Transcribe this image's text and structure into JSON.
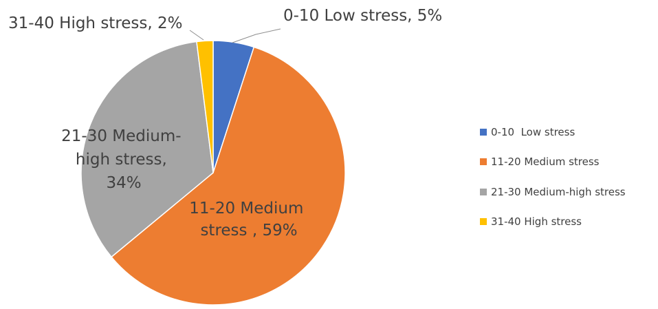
{
  "chart_data": {
    "type": "pie",
    "title": "",
    "categories": [
      "0-10  Low stress",
      "11-20 Medium stress",
      "21-30 Medium-high stress",
      "31-40 High stress"
    ],
    "values": [
      5,
      59,
      34,
      2
    ],
    "colors": [
      "#4472C4",
      "#ED7D31",
      "#A5A5A5",
      "#FFC000"
    ],
    "data_labels": [
      [
        "0-10  Low stress, 5%"
      ],
      [
        "11-20 Medium",
        "stress , 59%"
      ],
      [
        "21-30 Medium-",
        "high stress,",
        "34%"
      ],
      [
        "31-40 High stress, 2%"
      ]
    ],
    "legend_position": "right",
    "legend_entries": [
      "0-10  Low stress",
      "11-20 Medium stress",
      "21-30 Medium-high stress",
      "31-40 High stress"
    ]
  }
}
